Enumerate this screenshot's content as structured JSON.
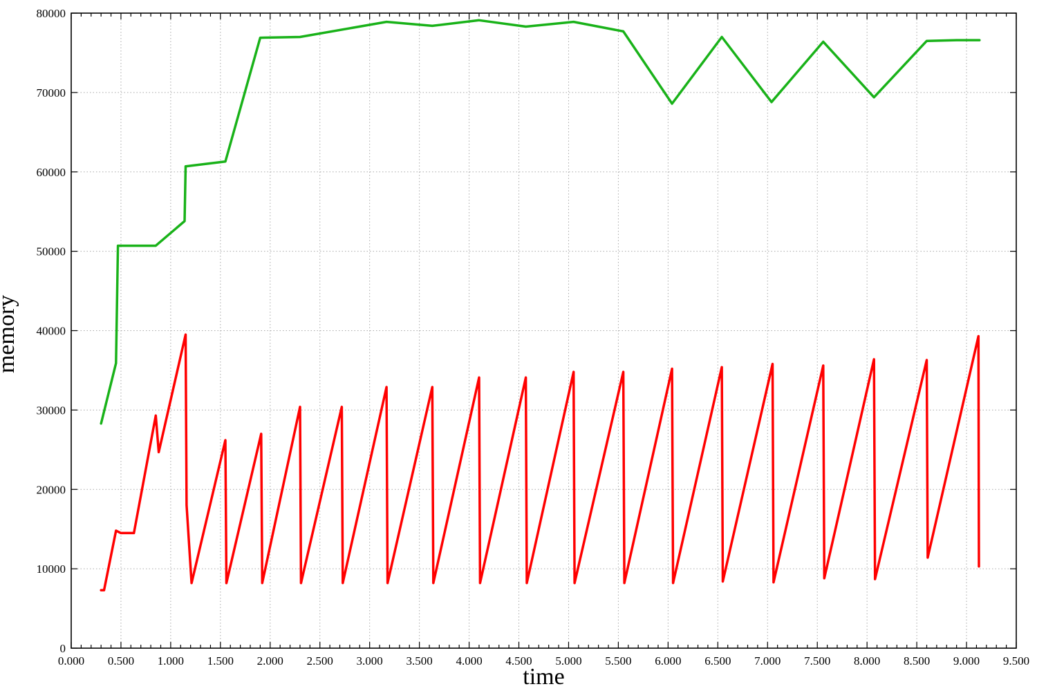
{
  "chart_data": {
    "type": "line",
    "title": "",
    "xlabel": "time",
    "ylabel": "memory",
    "xlim": [
      0,
      9.5
    ],
    "ylim": [
      0,
      80000
    ],
    "grid": true,
    "legend": "none",
    "x_ticks": [
      "0.000",
      "0.500",
      "1.000",
      "1.500",
      "2.000",
      "2.500",
      "3.000",
      "3.500",
      "4.000",
      "4.500",
      "5.000",
      "5.500",
      "6.000",
      "6.500",
      "7.000",
      "7.500",
      "8.000",
      "8.500",
      "9.000",
      "9.500"
    ],
    "y_ticks": [
      "0",
      "10000",
      "20000",
      "30000",
      "40000",
      "50000",
      "60000",
      "70000",
      "80000"
    ],
    "series": [
      {
        "color": "#19b219",
        "x": [
          0.3,
          0.45,
          0.47,
          0.85,
          1.14,
          1.15,
          1.55,
          1.9,
          2.3,
          3.17,
          3.63,
          4.1,
          4.57,
          5.05,
          5.55,
          6.04,
          6.54,
          7.04,
          7.56,
          8.07,
          8.6,
          8.9,
          9.13
        ],
        "y": [
          28300,
          35900,
          50700,
          50700,
          53800,
          60700,
          61300,
          76900,
          77000,
          78900,
          78400,
          79100,
          78300,
          78900,
          77700,
          68600,
          77000,
          68800,
          76400,
          69400,
          76500,
          76600,
          76600
        ]
      },
      {
        "color": "#ff0000",
        "x": [
          0.3,
          0.33,
          0.45,
          0.5,
          0.63,
          0.85,
          0.88,
          1.15,
          1.16,
          1.21,
          1.55,
          1.56,
          1.91,
          1.92,
          2.3,
          2.31,
          2.72,
          2.73,
          3.17,
          3.18,
          3.63,
          3.64,
          4.1,
          4.11,
          4.57,
          4.58,
          5.05,
          5.06,
          5.55,
          5.56,
          6.04,
          6.05,
          6.54,
          6.55,
          7.05,
          7.06,
          7.56,
          7.57,
          8.07,
          8.08,
          8.6,
          8.61,
          9.12,
          9.125
        ],
        "y": [
          7300,
          7300,
          14800,
          14500,
          14500,
          29300,
          24700,
          39500,
          18000,
          8200,
          26200,
          8200,
          27000,
          8200,
          30400,
          8200,
          30400,
          8200,
          32900,
          8200,
          32900,
          8200,
          34100,
          8200,
          34100,
          8200,
          34800,
          8200,
          34800,
          8200,
          35200,
          8200,
          35400,
          8400,
          35800,
          8300,
          35600,
          8800,
          36400,
          8700,
          36300,
          11400,
          39300,
          10300
        ]
      }
    ]
  }
}
